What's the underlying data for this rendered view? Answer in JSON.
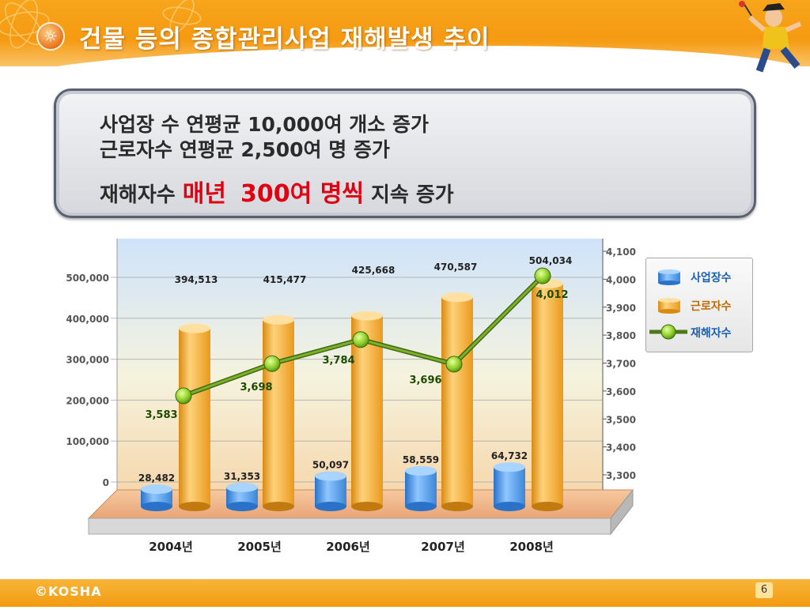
{
  "slide": {
    "title": "건물 등의 종합관리사업 재해발생 추이",
    "badge_icon": "sun-icon",
    "footer_logo": "©KOSHA",
    "page_number": "6",
    "colors": {
      "header": "#f59a12",
      "accent_red": "#e00012",
      "footer": "#f29b10"
    }
  },
  "summary": {
    "line1": "사업장 수 연평균 10,000여 개소  증가",
    "line2": "근로자수 연평균 2,500여 명 증가",
    "line3_prefix": "재해자수 ",
    "line3_highlight1": "매년",
    "line3_highlight2": "300여 명씩",
    "line3_suffix": " 지속 증가"
  },
  "chart_data": {
    "type": "bar",
    "categories": [
      "2004년",
      "2005년",
      "2006년",
      "2007년",
      "2008년"
    ],
    "series": [
      {
        "name": "사업장수",
        "type": "bar",
        "axis": "left",
        "color": "#3d8fe0",
        "values": [
          28482,
          31353,
          50097,
          58559,
          64732
        ],
        "labels": [
          "28,482",
          "31,353",
          "50,097",
          "58,559",
          "64,732"
        ]
      },
      {
        "name": "근로자수",
        "type": "bar",
        "axis": "left",
        "color": "#f0a020",
        "values": [
          394513,
          415477,
          425668,
          470587,
          504034
        ],
        "labels": [
          "394,513",
          "415,477",
          "425,668",
          "470,587",
          "504,034"
        ]
      },
      {
        "name": "재해자수",
        "type": "line",
        "axis": "right",
        "color": "#5a8a1e",
        "values": [
          3583,
          3698,
          3784,
          3696,
          4012
        ],
        "labels": [
          "3,583",
          "3,698",
          "3,784",
          "3,696",
          "4,012"
        ]
      }
    ],
    "y_left": {
      "ticks": [
        "0",
        "100,000",
        "200,000",
        "300,000",
        "400,000",
        "500,000"
      ],
      "range": [
        0,
        500000
      ]
    },
    "y_right": {
      "ticks": [
        "3,300",
        "3,400",
        "3,500",
        "3,600",
        "3,700",
        "3,800",
        "3,900",
        "4,000",
        "4,100"
      ],
      "range": [
        3300,
        4100
      ]
    },
    "legend_position": "right",
    "grid": true
  }
}
